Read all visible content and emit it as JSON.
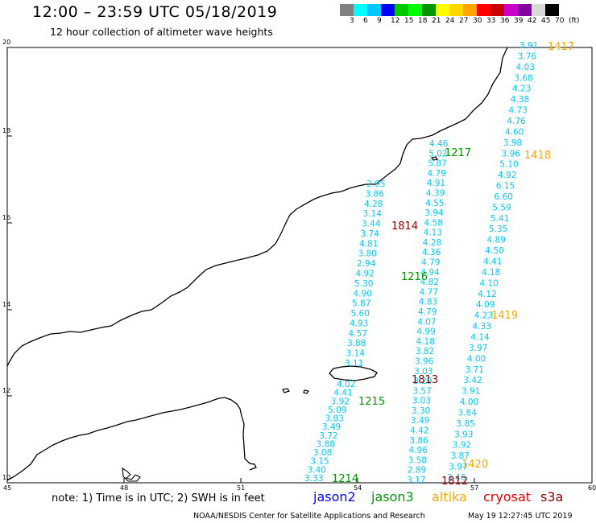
{
  "header": {
    "title": "12:00 – 23:59 UTC 05/18/2019",
    "subtitle": "12 hour collection of altimeter wave heights"
  },
  "colorbar": {
    "colors": [
      "#808080",
      "#00ffff",
      "#00c8ff",
      "#0000ff",
      "#00c800",
      "#00ff00",
      "#009600",
      "#ffff00",
      "#ffd700",
      "#ffa500",
      "#ff0000",
      "#c80000",
      "#c800c8",
      "#8000a0",
      "#d8d8d8",
      "#000000"
    ],
    "labels": [
      "3",
      "6",
      "9",
      "12",
      "15",
      "18",
      "21",
      "24",
      "27",
      "30",
      "33",
      "36",
      "39",
      "42",
      "45",
      "70",
      "(ft)"
    ]
  },
  "axes": {
    "x_ticks": [
      "45",
      "48",
      "51",
      "54",
      "57",
      "60"
    ],
    "y_ticks": [
      "10",
      "12",
      "14",
      "16",
      "18",
      "20"
    ]
  },
  "passes": [
    {
      "label": "1417",
      "color": "#ffa500"
    },
    {
      "label": "1418",
      "color": "#ffa500"
    },
    {
      "label": "1217",
      "color": "#009600"
    },
    {
      "label": "1814",
      "color": "#8b0000"
    },
    {
      "label": "1216",
      "color": "#009600"
    },
    {
      "label": "1419",
      "color": "#ffa500"
    },
    {
      "label": "1813",
      "color": "#8b0000"
    },
    {
      "label": "1215",
      "color": "#009600"
    },
    {
      "label": "1420",
      "color": "#ffa500"
    },
    {
      "label": "1214",
      "color": "#009600"
    },
    {
      "label": "1812",
      "color": "#8b0000"
    }
  ],
  "tracks": [
    {
      "color": "#00c8ff",
      "values": [
        "3.91",
        "3.76",
        "4.03",
        "3.68",
        "4.23",
        "4.38",
        "4.73",
        "4.76",
        "4.60",
        "3.98",
        "3.96",
        "5.10",
        "4.92",
        "6.15",
        "6.60",
        "5.59",
        "5.41",
        "5.35",
        "4.89",
        "4.50",
        "4.41",
        "4.18",
        "4.10",
        "4.12",
        "4.09",
        "4.23",
        "4.33",
        "4.14",
        "3.97",
        "4.00",
        "3.71",
        "3.42",
        "3.91",
        "4.00",
        "3.84",
        "3.85",
        "3.93",
        "3.92",
        "3.87",
        "3.97",
        "3.46"
      ]
    },
    {
      "color": "#00c8ff",
      "values": [
        "4.46",
        "5.02",
        "5.87",
        "4.79",
        "4.91",
        "4.39",
        "4.55",
        "3.94",
        "4.58",
        "4.13",
        "4.28",
        "4.36",
        "4.79",
        "4.94",
        "4.82",
        "4.77",
        "4.83",
        "4.79",
        "4.07",
        "4.99",
        "4.18",
        "3.82",
        "3.96",
        "3.03",
        "3.29",
        "3.57",
        "3.03",
        "3.30",
        "3.49",
        "4.42",
        "3.86",
        "4.96",
        "3.58",
        "2.89",
        "3.17"
      ]
    },
    {
      "color": "#00c8ff",
      "values": [
        "2.95",
        "3.86",
        "4.28",
        "3.14",
        "3.44",
        "3.74",
        "4.81",
        "3.80",
        "2.94",
        "4.92",
        "5.30",
        "4.90",
        "5.87",
        "5.60",
        "4.93",
        "4.57",
        "3.88",
        "3.14",
        "3.11"
      ]
    },
    {
      "color": "#00c8ff",
      "values": [
        "4.02",
        "4.41",
        "3.92",
        "5.09",
        "3.83",
        "3.49",
        "3.72",
        "3.88",
        "3.08",
        "3.15",
        "3.40",
        "3.33"
      ]
    }
  ],
  "notes": {
    "note_text": "note:  1) Time is in UTC;  2) SWH is in feet"
  },
  "legend": [
    {
      "name": "jason2",
      "color": "#0000ff"
    },
    {
      "name": "jason3",
      "color": "#009600"
    },
    {
      "name": "altika",
      "color": "#ffa500"
    },
    {
      "name": "cryosat",
      "color": "#e00000"
    },
    {
      "name": "s3a",
      "color": "#8b0000"
    }
  ],
  "footer": {
    "credit": "NOAA/NESDIS Center for Satellite Applications and Research",
    "timestamp": "May 19 12:27:45 UTC 2019"
  }
}
